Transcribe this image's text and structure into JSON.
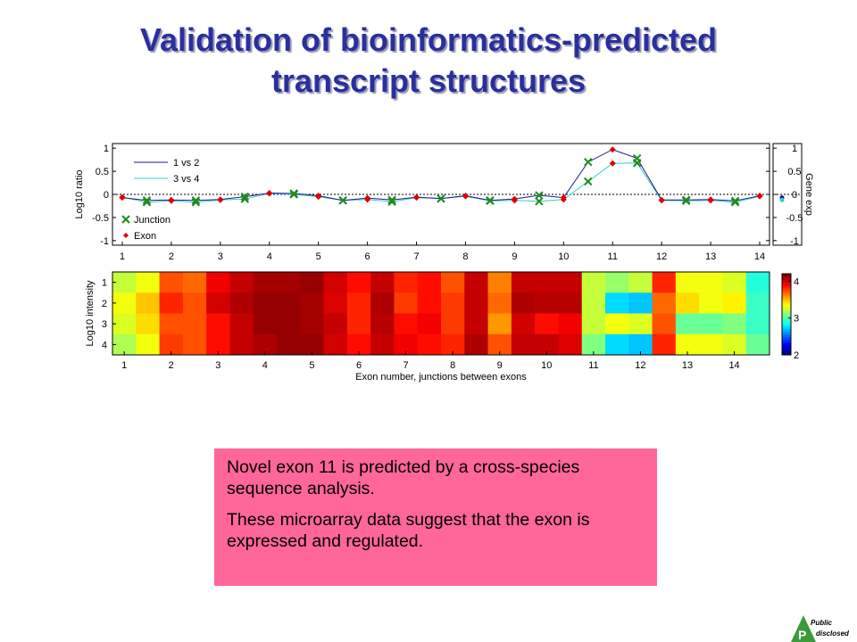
{
  "slide": {
    "title_line1": "Validation of bioinformatics-predicted",
    "title_line2": "transcript structures",
    "callout_p1": "Novel exon 11 is predicted by a cross-species sequence analysis.",
    "callout_p2": "These microarray data suggest that the exon is expressed and regulated.",
    "logo_line1": "Public",
    "logo_line2": "disclosed",
    "logo_letter": "P",
    "logo_color": "#3a9a3a"
  },
  "chart_data": [
    {
      "type": "line",
      "ylabel": "Log10 ratio",
      "xlim": [
        0.8,
        14.2
      ],
      "ylim": [
        -1.1,
        1.1
      ],
      "yticks": [
        -1,
        -0.5,
        0,
        0.5,
        1
      ],
      "ytick_labels": [
        "-1",
        "-0.5",
        "0",
        "0.5",
        "1"
      ],
      "xticks": [
        1,
        2,
        3,
        4,
        5,
        6,
        7,
        8,
        9,
        10,
        11,
        12,
        13,
        14
      ],
      "x": [
        1,
        1.5,
        2,
        2.5,
        3,
        3.5,
        4,
        4.5,
        5,
        5.5,
        6,
        6.5,
        7,
        7.5,
        8,
        8.5,
        9,
        9.5,
        10,
        10.5,
        11,
        11.5,
        12,
        12.5,
        13,
        13.5,
        14
      ],
      "marker_kind": [
        "exon",
        "junction",
        "exon",
        "junction",
        "exon",
        "junction",
        "exon",
        "junction",
        "exon",
        "junction",
        "exon",
        "junction",
        "exon",
        "junction",
        "exon",
        "junction",
        "exon",
        "junction",
        "exon",
        "junction",
        "exon",
        "junction",
        "exon",
        "junction",
        "exon",
        "junction",
        "exon"
      ],
      "series": [
        {
          "name": "1 vs 2",
          "color": "#1a1a8c",
          "values": [
            -0.07,
            -0.13,
            -0.12,
            -0.13,
            -0.11,
            -0.05,
            0.03,
            0.02,
            -0.03,
            -0.13,
            -0.08,
            -0.12,
            -0.06,
            -0.09,
            -0.03,
            -0.13,
            -0.1,
            -0.02,
            -0.07,
            0.7,
            0.97,
            0.78,
            -0.12,
            -0.12,
            -0.11,
            -0.14,
            -0.03
          ]
        },
        {
          "name": "3 vs 4",
          "color": "#33cccc",
          "values": [
            -0.06,
            -0.17,
            -0.14,
            -0.17,
            -0.12,
            -0.1,
            0.02,
            0.0,
            -0.05,
            -0.13,
            -0.11,
            -0.16,
            -0.07,
            -0.09,
            -0.04,
            -0.14,
            -0.13,
            -0.15,
            -0.11,
            0.28,
            0.67,
            0.68,
            -0.13,
            -0.14,
            -0.13,
            -0.17,
            -0.04
          ]
        }
      ],
      "legend_entries": [
        "1 vs 2",
        "3 vs 4",
        "Junction",
        "Exon"
      ],
      "legend_placement": "top-left",
      "reference_line": 0,
      "side_panel": {
        "ylabel": "Gene exp",
        "yticks": [
          -1,
          -0.5,
          0,
          0.5,
          1
        ],
        "ytick_labels": [
          "-1",
          "-0.5",
          "0",
          "0.5",
          "1"
        ],
        "values": [
          -0.07,
          -0.12
        ]
      }
    },
    {
      "type": "heatmap",
      "ylabel": "Log10 intensity",
      "xlabel": "Exon number, junctions between exons",
      "rows": [
        "1",
        "2",
        "3",
        "4"
      ],
      "xticks": [
        1,
        2,
        3,
        4,
        5,
        6,
        7,
        8,
        9,
        10,
        11,
        12,
        13,
        14
      ],
      "clim": [
        2,
        4.2
      ],
      "colorbar_ticks": [
        2,
        3,
        4
      ],
      "colorbar_labels": [
        "2",
        "3",
        "4"
      ],
      "values": [
        [
          3.25,
          3.35,
          3.75,
          3.7,
          3.95,
          4.05,
          4.12,
          4.12,
          4.15,
          4.02,
          3.9,
          4.05,
          3.85,
          3.9,
          3.75,
          4.05,
          3.65,
          4.05,
          4.05,
          4.05,
          3.25,
          3.15,
          3.25,
          3.85,
          3.35,
          3.35,
          3.3,
          2.9
        ],
        [
          3.35,
          3.5,
          3.85,
          3.75,
          4.02,
          4.1,
          4.15,
          4.15,
          4.12,
          4.0,
          3.85,
          4.1,
          3.8,
          3.9,
          3.8,
          4.05,
          3.7,
          4.1,
          4.08,
          4.08,
          3.25,
          2.75,
          2.7,
          3.7,
          3.45,
          3.35,
          3.4,
          2.95
        ],
        [
          3.3,
          3.45,
          3.75,
          3.75,
          3.9,
          4.05,
          4.15,
          4.15,
          4.12,
          4.05,
          3.85,
          4.08,
          3.9,
          3.95,
          3.8,
          4.05,
          3.6,
          4.02,
          3.9,
          3.95,
          3.25,
          3.35,
          3.3,
          3.75,
          3.05,
          3.05,
          3.1,
          2.95
        ],
        [
          3.2,
          3.35,
          3.8,
          3.75,
          3.9,
          4.05,
          4.1,
          4.15,
          4.15,
          4.02,
          3.9,
          4.05,
          3.95,
          3.9,
          3.85,
          4.1,
          3.75,
          4.05,
          4.05,
          4.0,
          3.1,
          2.75,
          2.7,
          3.85,
          3.35,
          3.35,
          3.3,
          3.05
        ]
      ]
    }
  ]
}
